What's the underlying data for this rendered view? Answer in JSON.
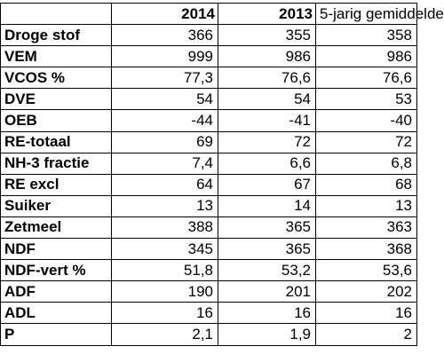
{
  "table": {
    "headers": [
      "",
      "2014",
      "2013",
      "5-jarig gemiddelde"
    ],
    "rows": [
      {
        "label": "Droge stof",
        "values": [
          "366",
          "355",
          "358"
        ]
      },
      {
        "label": "VEM",
        "values": [
          "999",
          "986",
          "986"
        ]
      },
      {
        "label": "VCOS %",
        "values": [
          "77,3",
          "76,6",
          "76,6"
        ]
      },
      {
        "label": "DVE",
        "values": [
          "54",
          "54",
          "53"
        ]
      },
      {
        "label": "OEB",
        "values": [
          "-44",
          "-41",
          "-40"
        ]
      },
      {
        "label": "RE-totaal",
        "values": [
          "69",
          "72",
          "72"
        ]
      },
      {
        "label": "NH-3 fractie",
        "values": [
          "7,4",
          "6,6",
          "6,8"
        ]
      },
      {
        "label": "RE excl",
        "values": [
          "64",
          "67",
          "68"
        ]
      },
      {
        "label": "Suiker",
        "values": [
          "13",
          "14",
          "13"
        ]
      },
      {
        "label": "Zetmeel",
        "values": [
          "388",
          "365",
          "363"
        ]
      },
      {
        "label": "NDF",
        "values": [
          "345",
          "365",
          "368"
        ]
      },
      {
        "label": "NDF-vert %",
        "values": [
          "51,8",
          "53,2",
          "53,6"
        ]
      },
      {
        "label": "ADF",
        "values": [
          "190",
          "201",
          "202"
        ]
      },
      {
        "label": "ADL",
        "values": [
          "16",
          "16",
          "16"
        ]
      },
      {
        "label": "P",
        "values": [
          "2,1",
          "1,9",
          "2"
        ]
      }
    ]
  }
}
